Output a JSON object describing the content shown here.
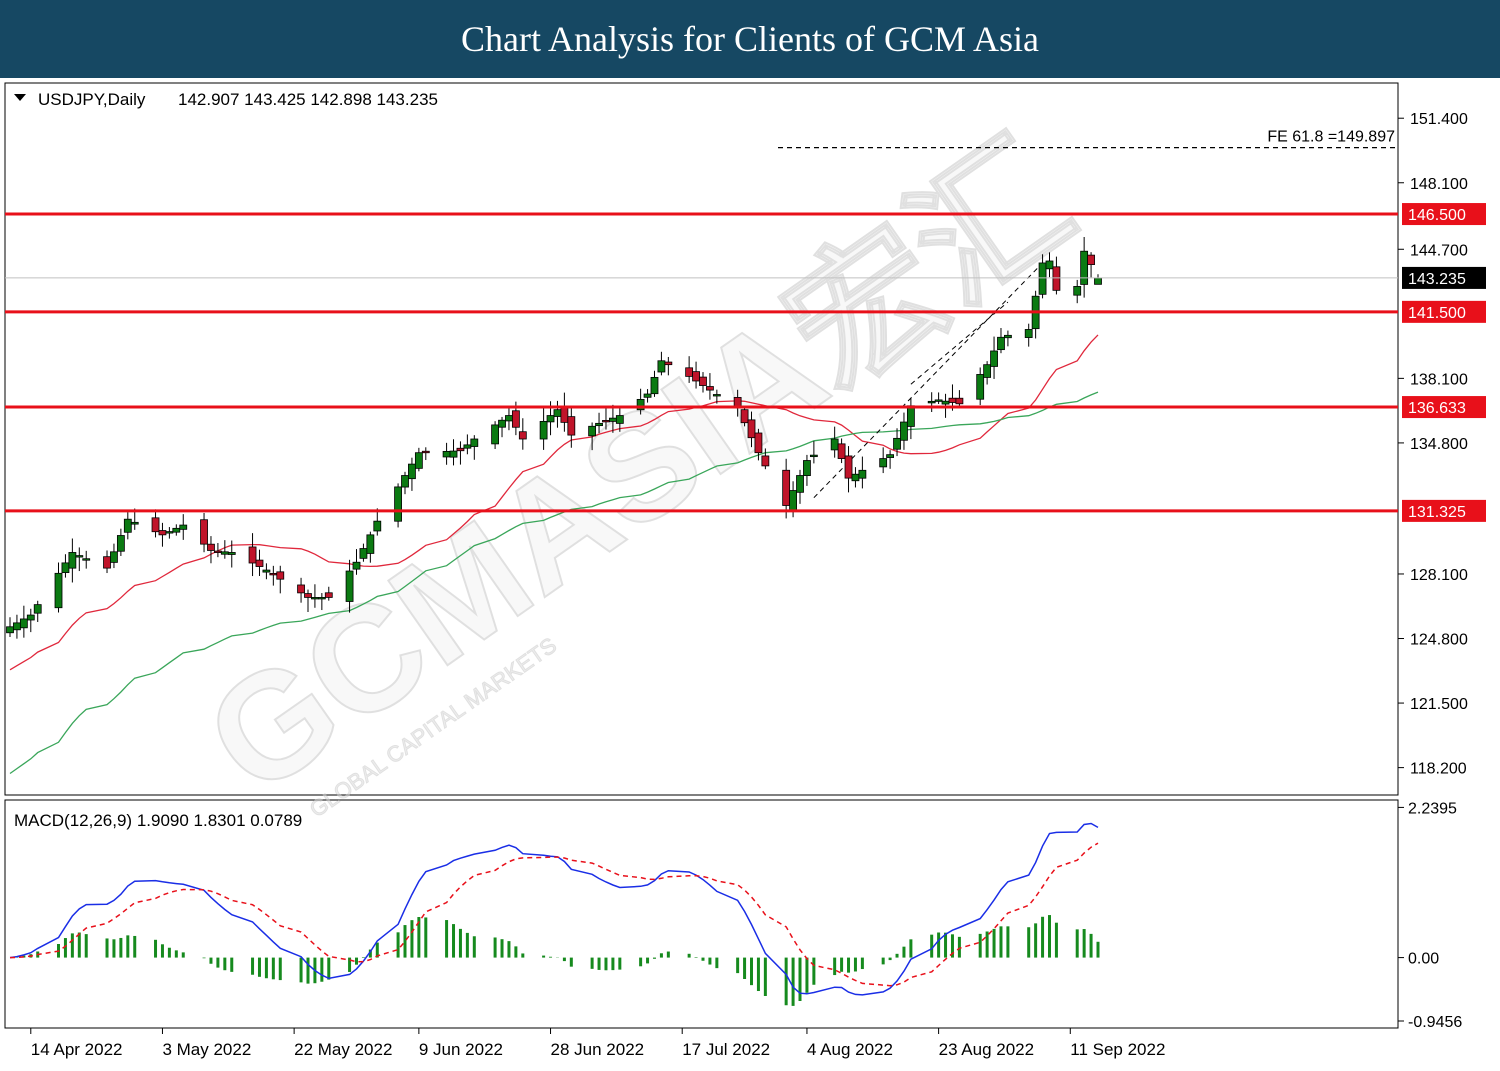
{
  "banner_title": "Chart Analysis for Clients of GCM Asia",
  "watermark": {
    "text": "GCMASIA宏汇",
    "subtext": "GLOBAL CAPITAL MARKETS"
  },
  "colors": {
    "banner": "#164863",
    "up_candle": "#0b7a12",
    "down_candle": "#c0142a",
    "ma20": "#e0283c",
    "ma50": "#3aa65a",
    "sr_line": "#e8101a",
    "macd_line": "#1a2ee6",
    "signal_line": "#e8101a",
    "histogram": "#168a1e"
  },
  "chart_data": {
    "type": "candlestick",
    "symbol_header": "USDJPY,Daily",
    "ohlc_header": "142.907 143.425 142.898 143.235",
    "last_price": 143.235,
    "ylim": [
      116.8,
      153.2
    ],
    "y_ticks": [
      "151.400",
      "148.100",
      "144.700",
      "138.100",
      "134.800",
      "128.100",
      "124.800",
      "121.500",
      "118.200"
    ],
    "x_labels": [
      {
        "date": "2022-04-14",
        "text": "14 Apr 2022"
      },
      {
        "date": "2022-05-03",
        "text": "3 May 2022"
      },
      {
        "date": "2022-05-22",
        "text": "22 May 2022"
      },
      {
        "date": "2022-06-09",
        "text": "9 Jun 2022"
      },
      {
        "date": "2022-06-28",
        "text": "28 Jun 2022"
      },
      {
        "date": "2022-07-17",
        "text": "17 Jul 2022"
      },
      {
        "date": "2022-08-04",
        "text": "4 Aug 2022"
      },
      {
        "date": "2022-08-23",
        "text": "23 Aug 2022"
      },
      {
        "date": "2022-09-11",
        "text": "11 Sep 2022"
      }
    ],
    "horizontal_levels": [
      {
        "label": "146.500",
        "value": 146.5
      },
      {
        "label": "141.500",
        "value": 141.5
      },
      {
        "label": "136.633",
        "value": 136.633
      },
      {
        "label": "131.325",
        "value": 131.325
      }
    ],
    "fib_extension": {
      "label": "FE 61.8 =149.897",
      "value": 149.897
    },
    "macd": {
      "label": "MACD(12,26,9) 1.9090 1.8301 0.0789",
      "ylim": [
        -1.05,
        2.35
      ],
      "y_ticks": [
        "2.2395",
        "0.00",
        "-0.9456"
      ]
    }
  }
}
